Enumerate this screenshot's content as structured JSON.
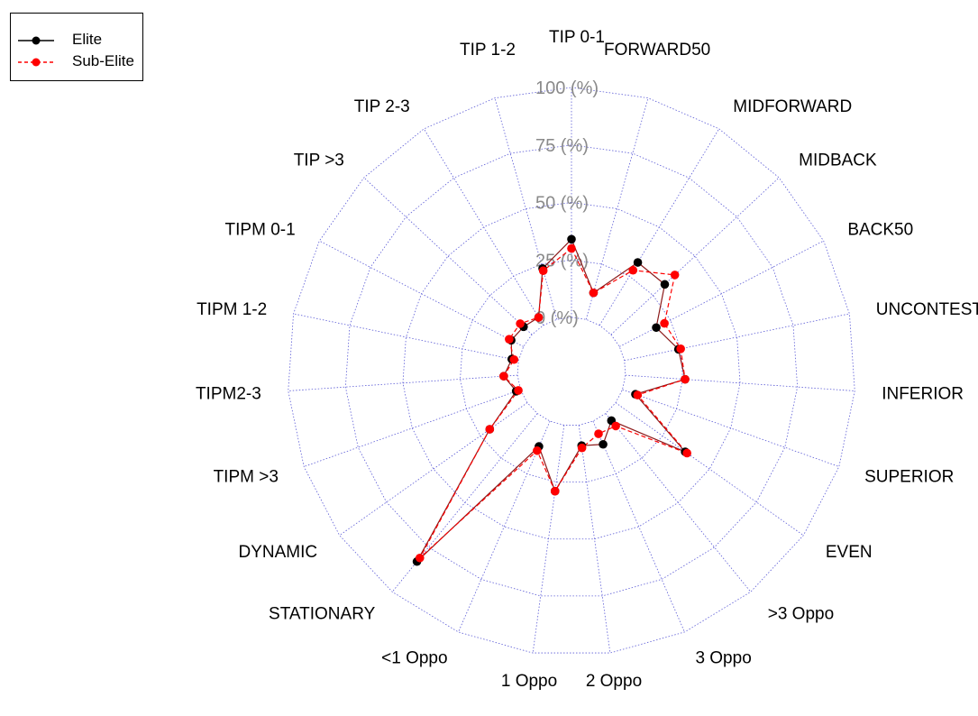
{
  "chart_data": {
    "type": "radar",
    "title": "",
    "axes": [
      "TIP 0-1",
      "FORWARD50",
      "MIDFORWARD",
      "MIDBACK",
      "BACK50",
      "UNCONTESTED",
      "INFERIOR",
      "SUPERIOR",
      "EVEN",
      ">3 Oppo",
      "3 Oppo",
      "2 Oppo",
      "1 Oppo",
      "<1 Oppo",
      "STATIONARY",
      "DYNAMIC",
      "TIPM >3",
      "TIPM2-3",
      "TIPM 1-2",
      "TIPM 0-1",
      "TIP >3",
      "TIP 2-3",
      "TIP 1-2"
    ],
    "radial_labels": [
      "0 (%)",
      "25 (%)",
      "50 (%)",
      "75 (%)",
      "100 (%)"
    ],
    "radial_range": [
      0,
      100
    ],
    "legend_position": "top-left",
    "series": [
      {
        "name": "Elite",
        "color": "#000000",
        "line": "solid",
        "values": [
          34,
          12,
          32,
          32,
          18,
          24,
          26,
          6,
          37,
          4,
          11,
          9,
          29,
          12,
          83,
          20,
          2,
          6,
          3,
          6,
          5,
          4,
          23
        ]
      },
      {
        "name": "Sub-Elite",
        "color": "#ff0000",
        "line": "dashed",
        "values": [
          30,
          12,
          28,
          38,
          22,
          25,
          26,
          7,
          38,
          7,
          6,
          10,
          29,
          14,
          81,
          20,
          1,
          6,
          2,
          7,
          7,
          4,
          22
        ]
      }
    ]
  },
  "colors": {
    "grid": "#5b5bd6",
    "elite": "#000000",
    "subelite": "#ff0000",
    "elite_line": "#8b1a1a"
  }
}
